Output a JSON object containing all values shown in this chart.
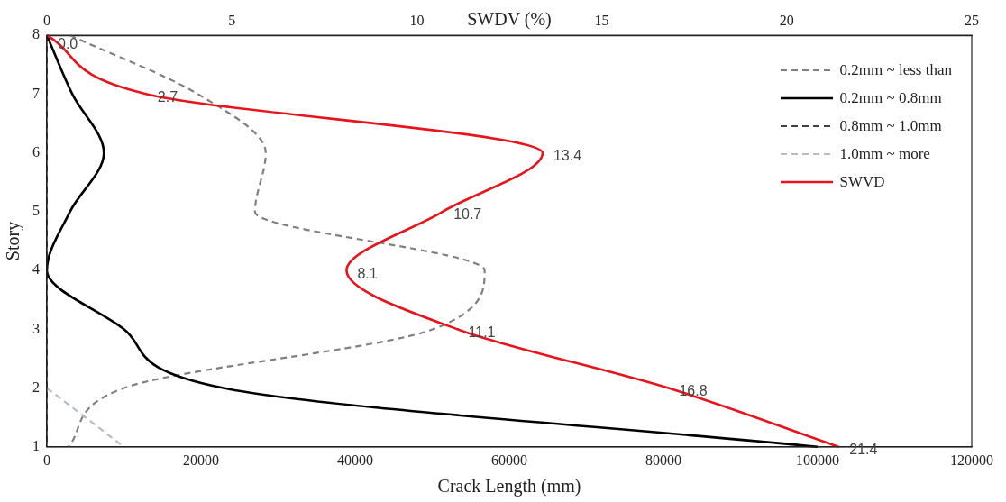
{
  "chart_data": {
    "type": "line",
    "orientation": "horizontal",
    "xlabel": "Crack Length (mm)",
    "ylabel": "Story",
    "x2label": "SWDV (%)",
    "categories": [
      "8",
      "7",
      "6",
      "5",
      "4",
      "3",
      "2",
      "1"
    ],
    "xlim": [
      0,
      120000
    ],
    "xticks": [
      0,
      20000,
      40000,
      60000,
      80000,
      100000,
      120000
    ],
    "x2lim": [
      0,
      25
    ],
    "x2ticks": [
      0,
      5,
      10,
      15,
      20,
      25
    ],
    "grid": false,
    "legend": "top right",
    "marker": "none",
    "series": [
      {
        "name": "0.2mm ~ less than",
        "color": "#808080",
        "line_style": "dashed",
        "values": [
          3000,
          19600,
          28400,
          27000,
          56800,
          50100,
          10000,
          2800
        ]
      },
      {
        "name": "0.2mm ~ 0.8mm",
        "color": "#000000",
        "line_style": "solid",
        "values": [
          0,
          3300,
          7400,
          3000,
          0,
          10000,
          22900,
          100000
        ]
      },
      {
        "name": "0.8mm ~ 1.0mm",
        "color": "#000000",
        "line_style": "dashed",
        "values": [
          0,
          0,
          0,
          0,
          0,
          0,
          0,
          0
        ]
      },
      {
        "name": "1.0mm ~ more",
        "color": "#b4bccc",
        "line_style": "dashed",
        "values": [
          null,
          null,
          null,
          null,
          null,
          null,
          0,
          10000
        ]
      },
      {
        "name": "SWVD",
        "color": "#e8141c",
        "line_style": "solid",
        "axis": "x2",
        "values": [
          0.0,
          2.7,
          13.4,
          10.7,
          8.1,
          11.1,
          16.8,
          21.4
        ],
        "value_labels": [
          "0.0",
          "2.7",
          "13.4",
          "10.7",
          "8.1",
          "11.1",
          "16.8",
          "21.4"
        ]
      }
    ]
  }
}
